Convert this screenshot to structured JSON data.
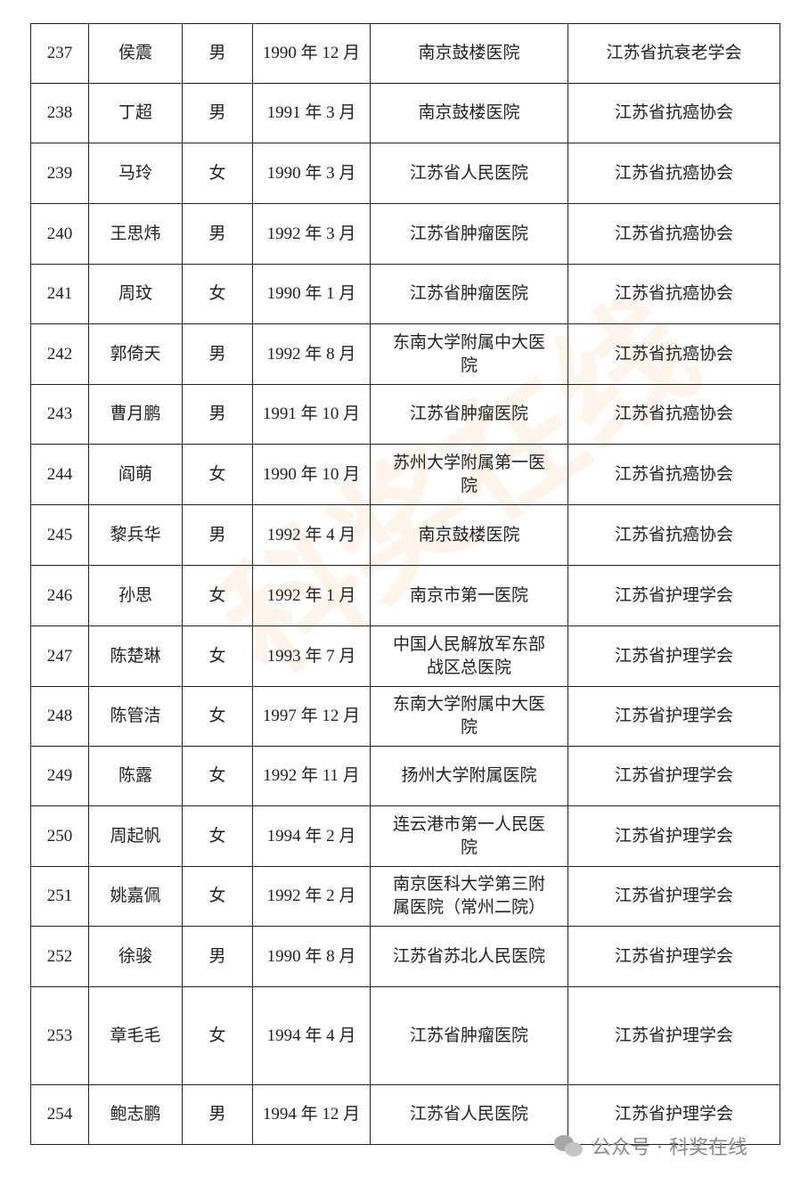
{
  "table": {
    "rows": [
      {
        "no": "237",
        "name": "侯震",
        "gender": "男",
        "birth": "1990 年 12 月",
        "institution": "南京鼓楼医院",
        "society": "江苏省抗衰老学会"
      },
      {
        "no": "238",
        "name": "丁超",
        "gender": "男",
        "birth": "1991 年 3 月",
        "institution": "南京鼓楼医院",
        "society": "江苏省抗癌协会"
      },
      {
        "no": "239",
        "name": "马玲",
        "gender": "女",
        "birth": "1990 年 3 月",
        "institution": "江苏省人民医院",
        "society": "江苏省抗癌协会"
      },
      {
        "no": "240",
        "name": "王思炜",
        "gender": "男",
        "birth": "1992 年 3 月",
        "institution": "江苏省肿瘤医院",
        "society": "江苏省抗癌协会"
      },
      {
        "no": "241",
        "name": "周玟",
        "gender": "女",
        "birth": "1990 年 1 月",
        "institution": "江苏省肿瘤医院",
        "society": "江苏省抗癌协会"
      },
      {
        "no": "242",
        "name": "郭倚天",
        "gender": "男",
        "birth": "1992 年 8 月",
        "institution": "东南大学附属中大医院",
        "society": "江苏省抗癌协会"
      },
      {
        "no": "243",
        "name": "曹月鹏",
        "gender": "男",
        "birth": "1991 年 10 月",
        "institution": "江苏省肿瘤医院",
        "society": "江苏省抗癌协会"
      },
      {
        "no": "244",
        "name": "阎萌",
        "gender": "女",
        "birth": "1990 年 10 月",
        "institution": "苏州大学附属第一医院",
        "society": "江苏省抗癌协会"
      },
      {
        "no": "245",
        "name": "黎兵华",
        "gender": "男",
        "birth": "1992 年 4 月",
        "institution": "南京鼓楼医院",
        "society": "江苏省抗癌协会"
      },
      {
        "no": "246",
        "name": "孙思",
        "gender": "女",
        "birth": "1992 年 1 月",
        "institution": "南京市第一医院",
        "society": "江苏省护理学会"
      },
      {
        "no": "247",
        "name": "陈楚琳",
        "gender": "女",
        "birth": "1993 年 7 月",
        "institution": "中国人民解放军东部战区总医院",
        "society": "江苏省护理学会"
      },
      {
        "no": "248",
        "name": "陈管洁",
        "gender": "女",
        "birth": "1997 年 12 月",
        "institution": "东南大学附属中大医院",
        "society": "江苏省护理学会"
      },
      {
        "no": "249",
        "name": "陈露",
        "gender": "女",
        "birth": "1992 年 11 月",
        "institution": "扬州大学附属医院",
        "society": "江苏省护理学会"
      },
      {
        "no": "250",
        "name": "周起帆",
        "gender": "女",
        "birth": "1994 年 2 月",
        "institution": "连云港市第一人民医院",
        "society": "江苏省护理学会"
      },
      {
        "no": "251",
        "name": "姚嘉佩",
        "gender": "女",
        "birth": "1992 年 2 月",
        "institution": "南京医科大学第三附属医院（常州二院）",
        "society": "江苏省护理学会"
      },
      {
        "no": "252",
        "name": "徐骏",
        "gender": "男",
        "birth": "1990 年 8 月",
        "institution": "江苏省苏北人民医院",
        "society": "江苏省护理学会"
      },
      {
        "no": "253",
        "name": "章毛毛",
        "gender": "女",
        "birth": "1994 年 4 月",
        "institution": "江苏省肿瘤医院",
        "society": "江苏省护理学会"
      },
      {
        "no": "254",
        "name": "鲍志鹏",
        "gender": "男",
        "birth": "1994 年 12 月",
        "institution": "江苏省人民医院",
        "society": "江苏省护理学会"
      }
    ]
  },
  "watermark": "科奖在线",
  "footer": {
    "icon": "wechat-icon",
    "text": "公众号 · 科奖在线"
  }
}
